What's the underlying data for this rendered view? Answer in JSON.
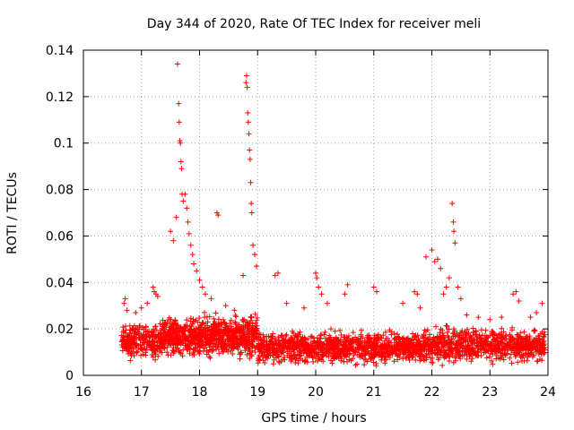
{
  "chart_data": {
    "type": "scatter",
    "title": "Day 344 of 2020, Rate Of TEC Index for receiver meli",
    "xlabel": "GPS time / hours",
    "ylabel": "ROTI / TECUs",
    "xlim": [
      16,
      24
    ],
    "ylim": [
      0,
      0.14
    ],
    "xticks": [
      "16",
      "17",
      "18",
      "19",
      "20",
      "21",
      "22",
      "23",
      "24"
    ],
    "yticks": [
      "0",
      "0.02",
      "0.04",
      "0.06",
      "0.08",
      "0.1",
      "0.12",
      "0.14"
    ],
    "grid": true,
    "marker": "+",
    "color": "#ff0000",
    "series": [
      {
        "name": "ROTI",
        "segments": [
          {
            "start": 16.65,
            "end": 17.35,
            "base": 0.015,
            "spread": 0.012,
            "count": 260
          },
          {
            "start": 17.35,
            "end": 19.0,
            "base": 0.017,
            "spread": 0.014,
            "count": 820
          },
          {
            "start": 19.0,
            "end": 22.0,
            "base": 0.012,
            "spread": 0.011,
            "count": 1100
          },
          {
            "start": 22.0,
            "end": 23.95,
            "base": 0.013,
            "spread": 0.012,
            "count": 700
          }
        ],
        "points": [
          [
            16.7,
            0.031
          ],
          [
            16.72,
            0.033
          ],
          [
            16.75,
            0.028
          ],
          [
            16.9,
            0.027
          ],
          [
            17.0,
            0.029
          ],
          [
            17.1,
            0.031
          ],
          [
            17.2,
            0.038
          ],
          [
            17.22,
            0.036
          ],
          [
            17.25,
            0.035
          ],
          [
            17.28,
            0.034
          ],
          [
            17.5,
            0.062
          ],
          [
            17.55,
            0.058
          ],
          [
            17.6,
            0.068
          ],
          [
            17.62,
            0.134
          ],
          [
            17.64,
            0.117
          ],
          [
            17.65,
            0.109
          ],
          [
            17.66,
            0.101
          ],
          [
            17.67,
            0.1
          ],
          [
            17.68,
            0.092
          ],
          [
            17.69,
            0.089
          ],
          [
            17.7,
            0.078
          ],
          [
            17.72,
            0.075
          ],
          [
            17.75,
            0.078
          ],
          [
            17.78,
            0.072
          ],
          [
            17.8,
            0.066
          ],
          [
            17.82,
            0.061
          ],
          [
            17.85,
            0.056
          ],
          [
            17.88,
            0.052
          ],
          [
            17.9,
            0.048
          ],
          [
            17.95,
            0.045
          ],
          [
            18.0,
            0.041
          ],
          [
            18.05,
            0.038
          ],
          [
            18.1,
            0.035
          ],
          [
            18.2,
            0.033
          ],
          [
            18.3,
            0.07
          ],
          [
            18.32,
            0.069
          ],
          [
            18.45,
            0.03
          ],
          [
            18.6,
            0.028
          ],
          [
            18.75,
            0.043
          ],
          [
            18.8,
            0.126
          ],
          [
            18.81,
            0.129
          ],
          [
            18.82,
            0.124
          ],
          [
            18.83,
            0.113
          ],
          [
            18.84,
            0.109
          ],
          [
            18.85,
            0.104
          ],
          [
            18.86,
            0.097
          ],
          [
            18.87,
            0.093
          ],
          [
            18.88,
            0.083
          ],
          [
            18.89,
            0.074
          ],
          [
            18.9,
            0.07
          ],
          [
            18.92,
            0.056
          ],
          [
            18.95,
            0.052
          ],
          [
            18.98,
            0.047
          ],
          [
            19.3,
            0.043
          ],
          [
            19.35,
            0.044
          ],
          [
            19.5,
            0.031
          ],
          [
            19.8,
            0.029
          ],
          [
            20.0,
            0.044
          ],
          [
            20.02,
            0.042
          ],
          [
            20.05,
            0.038
          ],
          [
            20.1,
            0.035
          ],
          [
            20.2,
            0.031
          ],
          [
            20.5,
            0.035
          ],
          [
            20.55,
            0.039
          ],
          [
            21.0,
            0.038
          ],
          [
            21.05,
            0.036
          ],
          [
            21.5,
            0.031
          ],
          [
            21.7,
            0.036
          ],
          [
            21.75,
            0.035
          ],
          [
            21.8,
            0.029
          ],
          [
            21.9,
            0.051
          ],
          [
            22.0,
            0.054
          ],
          [
            22.05,
            0.049
          ],
          [
            22.1,
            0.05
          ],
          [
            22.15,
            0.046
          ],
          [
            22.2,
            0.035
          ],
          [
            22.25,
            0.038
          ],
          [
            22.3,
            0.042
          ],
          [
            22.35,
            0.074
          ],
          [
            22.37,
            0.066
          ],
          [
            22.38,
            0.062
          ],
          [
            22.4,
            0.057
          ],
          [
            22.45,
            0.038
          ],
          [
            22.5,
            0.033
          ],
          [
            22.6,
            0.026
          ],
          [
            22.8,
            0.025
          ],
          [
            23.0,
            0.024
          ],
          [
            23.2,
            0.025
          ],
          [
            23.4,
            0.035
          ],
          [
            23.45,
            0.036
          ],
          [
            23.5,
            0.032
          ],
          [
            23.7,
            0.025
          ],
          [
            23.8,
            0.027
          ],
          [
            23.9,
            0.031
          ]
        ]
      }
    ]
  }
}
